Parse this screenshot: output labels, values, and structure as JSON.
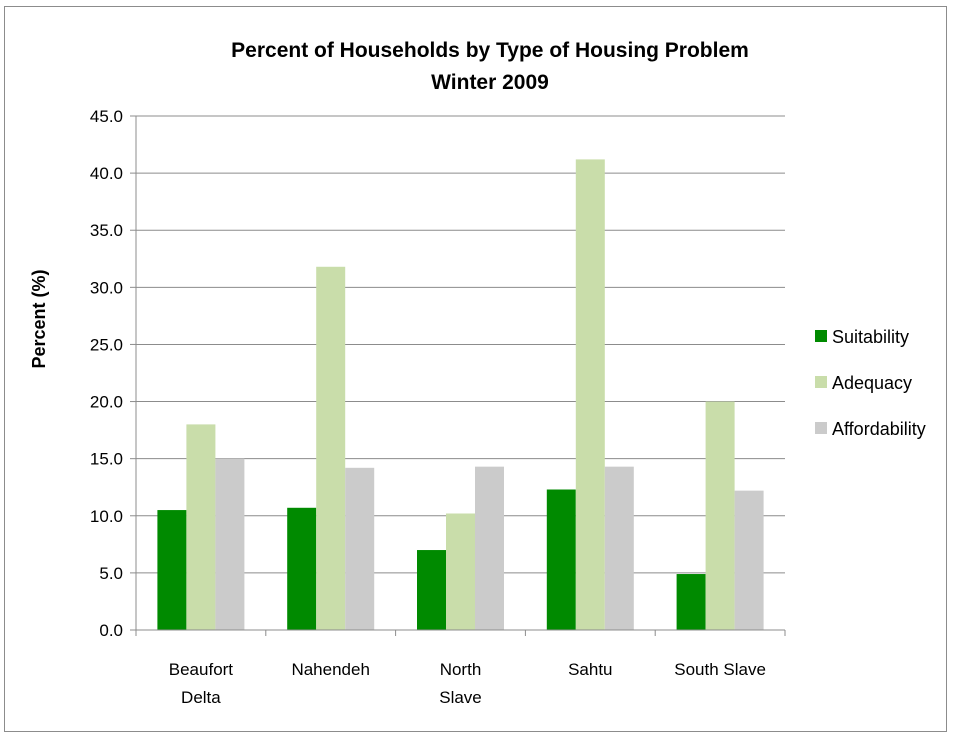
{
  "chart_data": {
    "type": "bar",
    "title": "Percent of Households by Type of Housing Problem",
    "subtitle": "Winter 2009",
    "xlabel": "",
    "ylabel": "Percent (%)",
    "ylim": [
      0,
      45
    ],
    "ytick_step": 5,
    "ytick_labels": [
      "0.0",
      "5.0",
      "10.0",
      "15.0",
      "20.0",
      "25.0",
      "30.0",
      "35.0",
      "40.0",
      "45.0"
    ],
    "grid": true,
    "legend_position": "right",
    "categories": [
      [
        "Beaufort",
        "Delta"
      ],
      [
        "Nahendeh"
      ],
      [
        "North",
        "Slave"
      ],
      [
        "Sahtu"
      ],
      [
        "South Slave"
      ]
    ],
    "series": [
      {
        "name": "Suitability",
        "color": "#008a00",
        "values": [
          10.5,
          10.7,
          7.0,
          12.3,
          4.9
        ]
      },
      {
        "name": "Adequacy",
        "color": "#c9ddaa",
        "values": [
          18.0,
          31.8,
          10.2,
          41.2,
          20.0
        ]
      },
      {
        "name": "Affordability",
        "color": "#cbcbcb",
        "values": [
          15.0,
          14.2,
          14.3,
          14.3,
          12.2
        ]
      }
    ]
  }
}
